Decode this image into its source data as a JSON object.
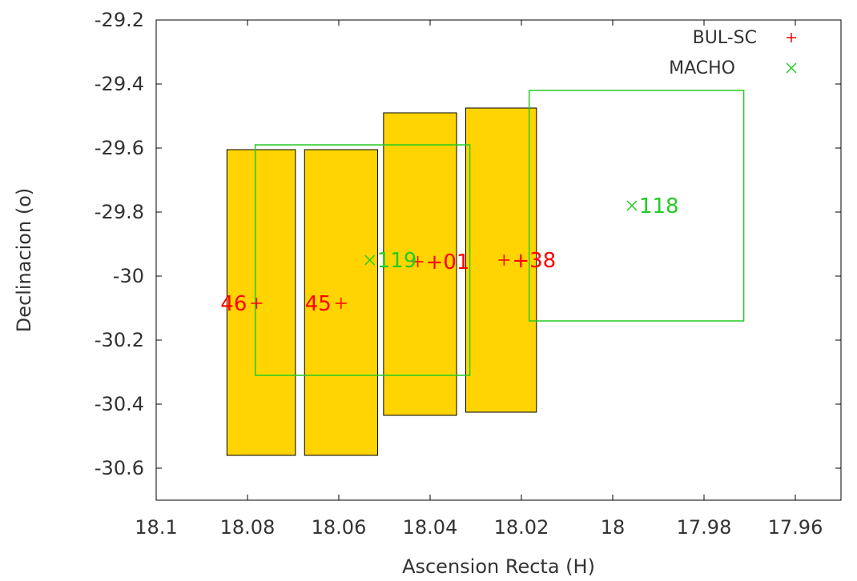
{
  "chart_data": {
    "type": "scatter",
    "title": "",
    "xlabel": "Ascension Recta (H)",
    "ylabel": "Declinacion (o)",
    "x_reversed": true,
    "xlim": [
      18.1,
      17.95
    ],
    "ylim": [
      -30.7,
      -29.2
    ],
    "x_ticks": [
      18.1,
      18.08,
      18.06,
      18.04,
      18.02,
      18.0,
      17.98,
      17.96
    ],
    "x_tick_labels": [
      "18.1",
      "18.08",
      "18.06",
      "18.04",
      "18.02",
      "18",
      "17.98",
      "17.96"
    ],
    "y_ticks": [
      -29.2,
      -29.4,
      -29.6,
      -29.8,
      -30.0,
      -30.2,
      -30.4,
      -30.6
    ],
    "y_tick_labels": [
      "-29.2",
      "-29.4",
      "-29.6",
      "-29.8",
      "-30",
      "-30.2",
      "-30.4",
      "-30.6"
    ],
    "grid": false,
    "legend_position": "top-right",
    "colors": {
      "bul_fill": "#ffd400",
      "bul_marker": "#ff0000",
      "macho": "#22cc22"
    },
    "fields": [
      {
        "name": "BUL-SC",
        "label": "46",
        "x": 18.078,
        "y": -30.085,
        "ra_range": [
          18.0845,
          18.0695
        ],
        "dec_range": [
          -29.605,
          -30.56
        ]
      },
      {
        "name": "BUL-SC",
        "label": "45",
        "x": 18.0595,
        "y": -30.085,
        "ra_range": [
          18.0675,
          18.0515
        ],
        "dec_range": [
          -29.605,
          -30.56
        ]
      },
      {
        "name": "BUL-SC",
        "label": "+01",
        "x": 18.0427,
        "y": -29.955,
        "ra_range": [
          18.0502,
          18.0342
        ],
        "dec_range": [
          -29.49,
          -30.435
        ]
      },
      {
        "name": "BUL-SC",
        "label": "+38",
        "x": 18.0238,
        "y": -29.95,
        "ra_range": [
          18.0322,
          18.0167
        ],
        "dec_range": [
          -29.475,
          -30.425
        ]
      }
    ],
    "macho_fields": [
      {
        "name": "MACHO",
        "label": "119",
        "x": 18.0532,
        "y": -29.95,
        "ra_range": [
          18.0783,
          18.0313
        ],
        "dec_range": [
          -29.59,
          -30.31
        ]
      },
      {
        "name": "MACHO",
        "label": "118",
        "x": 17.9958,
        "y": -29.78,
        "ra_range": [
          18.0183,
          17.9713
        ],
        "dec_range": [
          -29.42,
          -30.14
        ]
      }
    ],
    "legend": [
      {
        "label": "BUL-SC",
        "marker": "plus"
      },
      {
        "label": "MACHO",
        "marker": "cross"
      }
    ]
  }
}
